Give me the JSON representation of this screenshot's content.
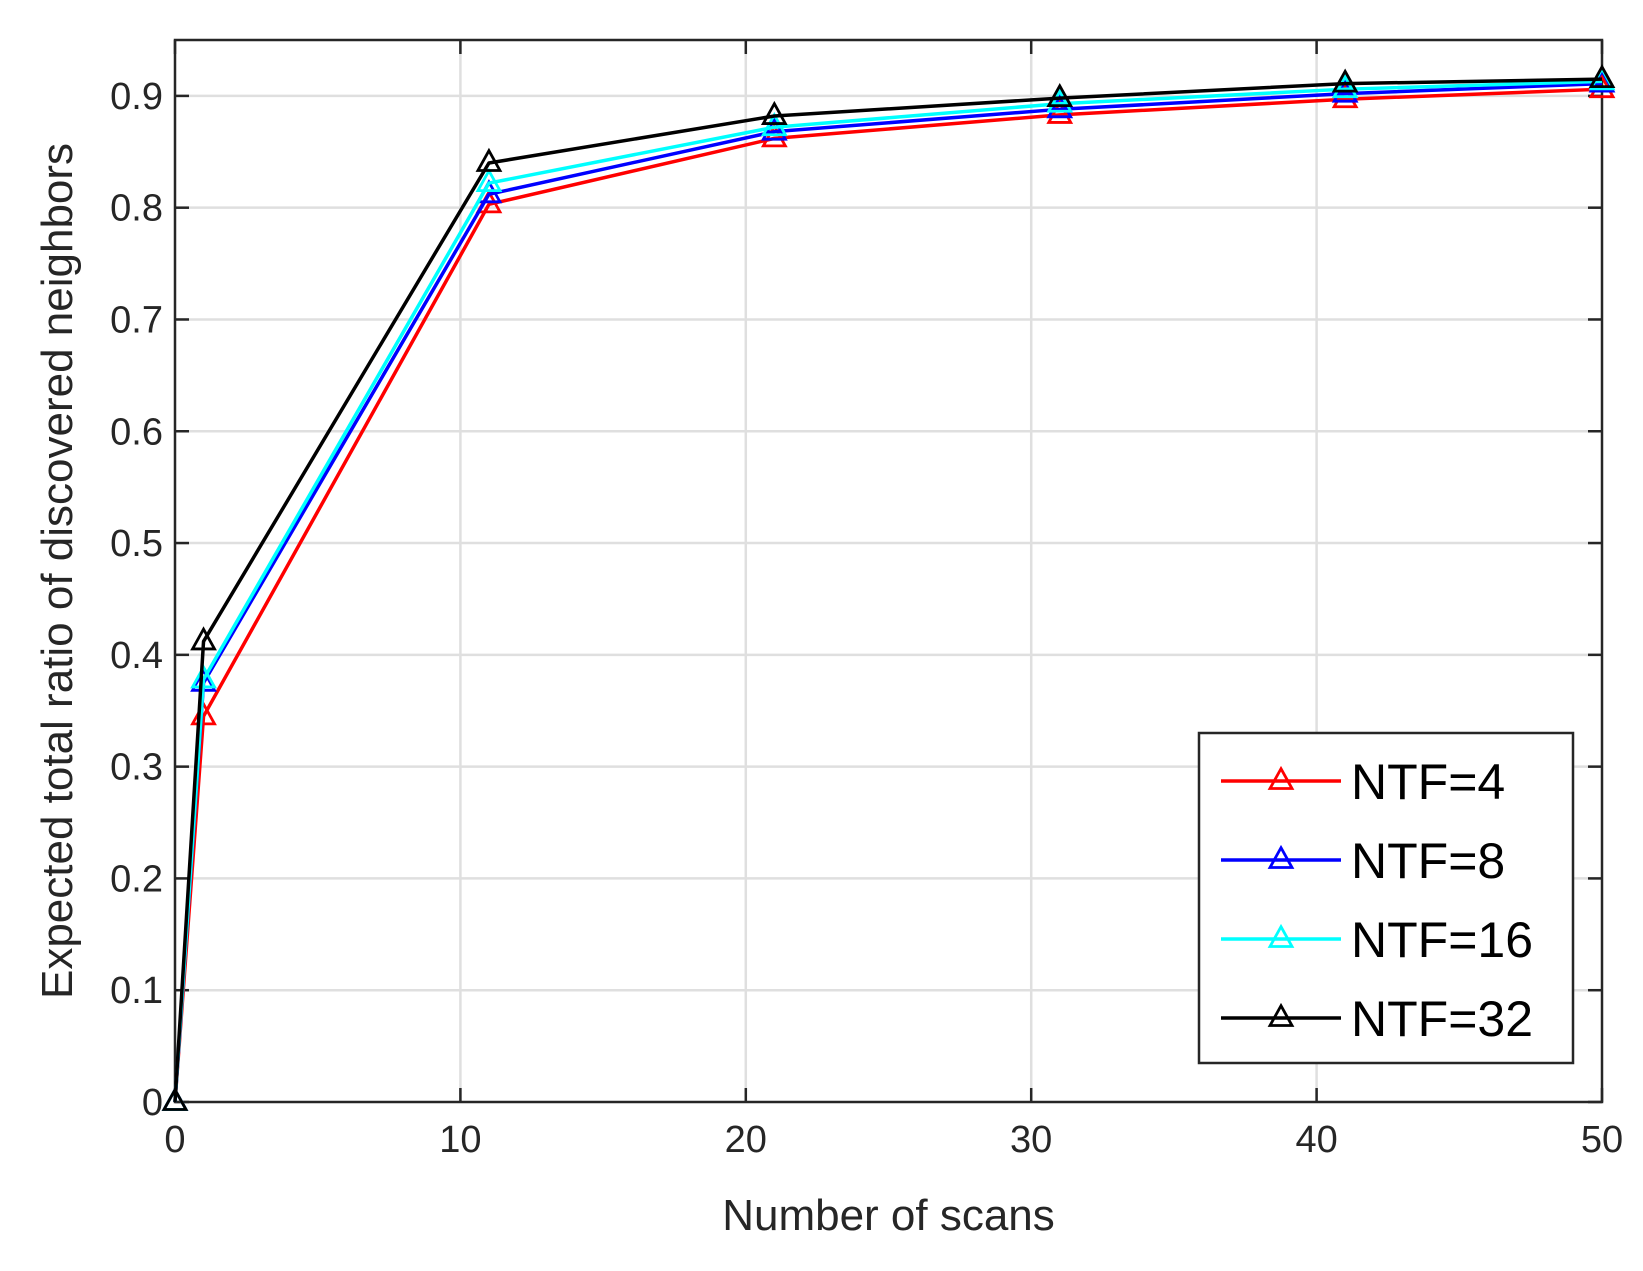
{
  "chart_data": {
    "type": "line",
    "title": "",
    "xlabel": "Number of scans",
    "ylabel": "Expected total ratio of discovered neighbors",
    "xlim": [
      0,
      50
    ],
    "ylim": [
      0,
      0.95
    ],
    "xticks": [
      0,
      10,
      20,
      30,
      40,
      50
    ],
    "xtick_labels": [
      "0",
      "10",
      "20",
      "30",
      "40",
      "50"
    ],
    "yticks": [
      0,
      0.1,
      0.2,
      0.3,
      0.4,
      0.5,
      0.6,
      0.7,
      0.8,
      0.9
    ],
    "ytick_labels": [
      "0",
      "0.1",
      "0.2",
      "0.3",
      "0.4",
      "0.5",
      "0.6",
      "0.7",
      "0.8",
      "0.9"
    ],
    "grid": true,
    "legend_position": "bottom-right",
    "marker": "triangle-open",
    "x": [
      0,
      1,
      11,
      21,
      31,
      41,
      50
    ],
    "series": [
      {
        "name": "NTF=4",
        "color": "#ff0000",
        "values": [
          0,
          0.345,
          0.803,
          0.862,
          0.883,
          0.897,
          0.906
        ]
      },
      {
        "name": "NTF=8",
        "color": "#0000ff",
        "values": [
          0,
          0.375,
          0.812,
          0.868,
          0.888,
          0.902,
          0.911
        ]
      },
      {
        "name": "NTF=16",
        "color": "#00ffff",
        "values": [
          0,
          0.378,
          0.822,
          0.872,
          0.893,
          0.906,
          0.913
        ]
      },
      {
        "name": "NTF=32",
        "color": "#000000",
        "values": [
          0,
          0.412,
          0.84,
          0.882,
          0.898,
          0.911,
          0.915
        ]
      }
    ]
  }
}
